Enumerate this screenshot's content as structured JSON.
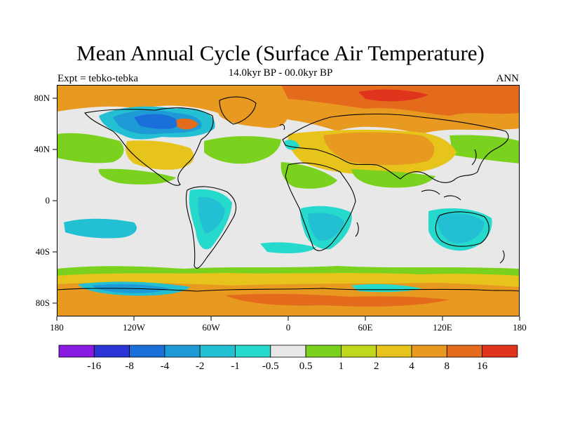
{
  "title": "Mean Annual Cycle (Surface Air Temperature)",
  "subtitle": "14.0kyr BP - 00.0kyr BP",
  "left_label": "Expt = tebko-tebka",
  "right_label": "ANN",
  "colors": {
    "background": "#ffffff",
    "neutral": "#e8e8e8",
    "coast": "#000000"
  },
  "axes": {
    "x_ticks": [
      "180",
      "120W",
      "60W",
      "0",
      "60E",
      "120E",
      "180"
    ],
    "y_ticks": [
      "80N",
      "40N",
      "0",
      "40S",
      "80S"
    ]
  },
  "legend": {
    "colors": [
      "#8a1be0",
      "#2c35d6",
      "#1a6fd8",
      "#1e9ad6",
      "#23bfd3",
      "#25d9cc",
      "#e8e8e8",
      "#7ad21e",
      "#c0d81c",
      "#e6c41c",
      "#e89a20",
      "#e46a1c",
      "#e0341c"
    ],
    "labels": [
      "-16",
      "-8",
      "-4",
      "-2",
      "-1",
      "-0.5",
      "0.5",
      "1",
      "2",
      "4",
      "8",
      "16"
    ]
  }
}
